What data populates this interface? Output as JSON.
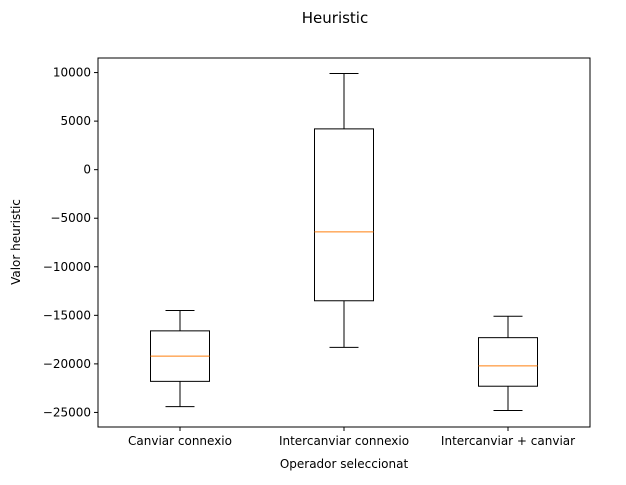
{
  "chart_data": {
    "type": "boxplot",
    "title": "Heuristic",
    "xlabel": "Operador seleccionat",
    "ylabel": "Valor heuristic",
    "ylim": [
      -26500,
      11500
    ],
    "yticks": [
      10000,
      5000,
      0,
      -5000,
      -10000,
      -15000,
      -20000,
      -25000
    ],
    "ytick_labels": [
      "10000",
      "5000",
      "0",
      "−5000",
      "−10000",
      "−15000",
      "−20000",
      "−25000"
    ],
    "categories": [
      "Canviar connexio",
      "Intercanviar connexio",
      "Intercanviar + canviar"
    ],
    "boxes": [
      {
        "whisker_low": -24400,
        "q1": -21800,
        "median": -19200,
        "q3": -16600,
        "whisker_high": -14500
      },
      {
        "whisker_low": -18300,
        "q1": -13500,
        "median": -6400,
        "q3": 4200,
        "whisker_high": 9900
      },
      {
        "whisker_low": -24800,
        "q1": -22300,
        "median": -20200,
        "q3": -17300,
        "whisker_high": -15100
      }
    ],
    "grid": false,
    "colors": {
      "box": "#000000",
      "median": "#ff7f0e"
    }
  }
}
